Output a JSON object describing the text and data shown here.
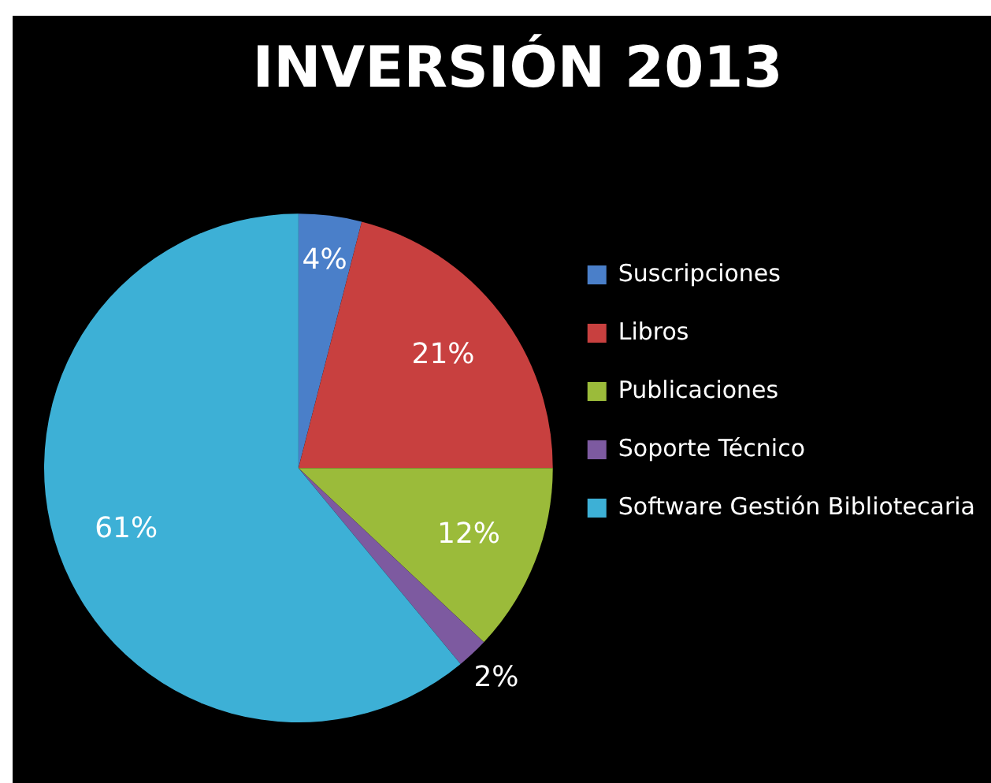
{
  "chart_data": {
    "type": "pie",
    "title": "INVERSIÓN 2013",
    "categories": [
      "Suscripciones",
      "Libros",
      "Publicaciones",
      "Soporte Técnico",
      "Software Gestión Bibliotecaria"
    ],
    "values": [
      4,
      21,
      12,
      2,
      61
    ],
    "colors": [
      "#4a7fc9",
      "#c8403f",
      "#9bbb3a",
      "#7d5aa0",
      "#3db0d6"
    ],
    "value_labels": [
      "4%",
      "21%",
      "12%",
      "2%",
      "61%"
    ],
    "legend": "right"
  }
}
